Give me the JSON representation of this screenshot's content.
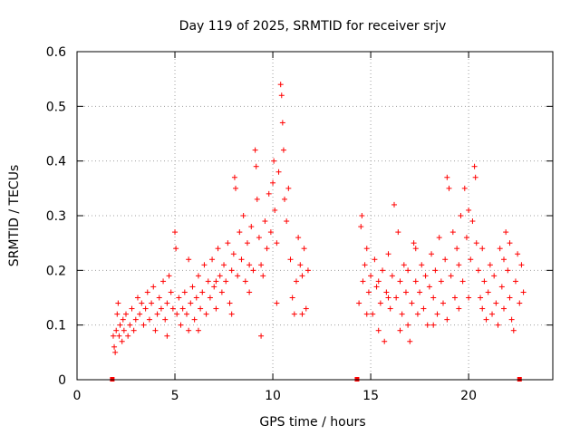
{
  "chart_data": {
    "type": "scatter",
    "title": "Day 119 of 2025, SRMTID for receiver srjv",
    "xlabel": "GPS time / hours",
    "ylabel": "SRMTID / TECUs",
    "xlim": [
      0,
      24.3
    ],
    "ylim": [
      0,
      0.6
    ],
    "xticks": [
      0,
      5,
      10,
      15,
      20
    ],
    "xtick_labels": [
      "0",
      "5",
      "10",
      "15",
      "20"
    ],
    "yticks": [
      0,
      0.1,
      0.2,
      0.3,
      0.4,
      0.5,
      0.6
    ],
    "ytick_labels": [
      "0",
      "0.1",
      "0.2",
      "0.3",
      "0.4",
      "0.5",
      "0.6"
    ],
    "grid": true,
    "marker": "plus",
    "color": "#ff0000",
    "gap_markers_x": [
      1.8,
      14.3,
      22.6
    ],
    "series": [
      {
        "name": "SRMTID",
        "points": [
          [
            1.85,
            0.08
          ],
          [
            1.9,
            0.06
          ],
          [
            1.95,
            0.05
          ],
          [
            2.0,
            0.09
          ],
          [
            2.05,
            0.12
          ],
          [
            2.1,
            0.14
          ],
          [
            2.15,
            0.08
          ],
          [
            2.2,
            0.1
          ],
          [
            2.3,
            0.07
          ],
          [
            2.35,
            0.11
          ],
          [
            2.4,
            0.09
          ],
          [
            2.5,
            0.12
          ],
          [
            2.6,
            0.08
          ],
          [
            2.7,
            0.1
          ],
          [
            2.8,
            0.13
          ],
          [
            2.9,
            0.09
          ],
          [
            3.0,
            0.11
          ],
          [
            3.1,
            0.15
          ],
          [
            3.2,
            0.12
          ],
          [
            3.3,
            0.14
          ],
          [
            3.4,
            0.1
          ],
          [
            3.5,
            0.13
          ],
          [
            3.6,
            0.16
          ],
          [
            3.7,
            0.11
          ],
          [
            3.8,
            0.14
          ],
          [
            3.9,
            0.17
          ],
          [
            4.0,
            0.09
          ],
          [
            4.1,
            0.12
          ],
          [
            4.2,
            0.15
          ],
          [
            4.3,
            0.13
          ],
          [
            4.4,
            0.18
          ],
          [
            4.5,
            0.11
          ],
          [
            4.6,
            0.14
          ],
          [
            4.7,
            0.19
          ],
          [
            4.8,
            0.16
          ],
          [
            4.9,
            0.13
          ],
          [
            5.0,
            0.27
          ],
          [
            5.05,
            0.24
          ],
          [
            5.1,
            0.12
          ],
          [
            5.2,
            0.15
          ],
          [
            5.3,
            0.1
          ],
          [
            5.4,
            0.13
          ],
          [
            5.5,
            0.16
          ],
          [
            5.6,
            0.12
          ],
          [
            5.7,
            0.09
          ],
          [
            5.8,
            0.14
          ],
          [
            5.9,
            0.17
          ],
          [
            6.0,
            0.11
          ],
          [
            6.1,
            0.15
          ],
          [
            6.2,
            0.19
          ],
          [
            6.3,
            0.13
          ],
          [
            6.4,
            0.16
          ],
          [
            6.5,
            0.21
          ],
          [
            6.6,
            0.12
          ],
          [
            6.7,
            0.18
          ],
          [
            6.8,
            0.15
          ],
          [
            6.9,
            0.22
          ],
          [
            7.0,
            0.17
          ],
          [
            7.1,
            0.13
          ],
          [
            7.2,
            0.24
          ],
          [
            7.3,
            0.19
          ],
          [
            7.4,
            0.16
          ],
          [
            7.5,
            0.21
          ],
          [
            7.6,
            0.18
          ],
          [
            7.7,
            0.25
          ],
          [
            7.8,
            0.14
          ],
          [
            7.9,
            0.2
          ],
          [
            8.0,
            0.23
          ],
          [
            8.05,
            0.37
          ],
          [
            8.1,
            0.35
          ],
          [
            8.2,
            0.19
          ],
          [
            8.3,
            0.27
          ],
          [
            8.4,
            0.22
          ],
          [
            8.5,
            0.3
          ],
          [
            8.6,
            0.18
          ],
          [
            8.7,
            0.25
          ],
          [
            8.8,
            0.21
          ],
          [
            8.9,
            0.28
          ],
          [
            9.0,
            0.2
          ],
          [
            9.1,
            0.42
          ],
          [
            9.15,
            0.39
          ],
          [
            9.2,
            0.33
          ],
          [
            9.3,
            0.26
          ],
          [
            9.4,
            0.21
          ],
          [
            9.5,
            0.19
          ],
          [
            9.6,
            0.29
          ],
          [
            9.7,
            0.24
          ],
          [
            9.8,
            0.34
          ],
          [
            9.9,
            0.27
          ],
          [
            10.0,
            0.36
          ],
          [
            10.05,
            0.4
          ],
          [
            10.1,
            0.31
          ],
          [
            10.2,
            0.25
          ],
          [
            10.3,
            0.38
          ],
          [
            10.4,
            0.54
          ],
          [
            10.45,
            0.52
          ],
          [
            10.5,
            0.47
          ],
          [
            10.55,
            0.42
          ],
          [
            10.6,
            0.33
          ],
          [
            10.7,
            0.29
          ],
          [
            10.8,
            0.35
          ],
          [
            10.9,
            0.22
          ],
          [
            11.0,
            0.15
          ],
          [
            11.1,
            0.12
          ],
          [
            11.2,
            0.18
          ],
          [
            11.3,
            0.26
          ],
          [
            11.4,
            0.21
          ],
          [
            11.5,
            0.19
          ],
          [
            11.6,
            0.24
          ],
          [
            11.7,
            0.13
          ],
          [
            11.8,
            0.2
          ],
          [
            9.4,
            0.08
          ],
          [
            7.9,
            0.12
          ],
          [
            6.2,
            0.09
          ],
          [
            4.6,
            0.08
          ],
          [
            10.2,
            0.14
          ],
          [
            11.5,
            0.12
          ],
          [
            8.8,
            0.16
          ],
          [
            7.1,
            0.18
          ],
          [
            5.7,
            0.22
          ],
          [
            14.4,
            0.14
          ],
          [
            14.5,
            0.28
          ],
          [
            14.55,
            0.3
          ],
          [
            14.6,
            0.18
          ],
          [
            14.7,
            0.21
          ],
          [
            14.8,
            0.24
          ],
          [
            14.9,
            0.16
          ],
          [
            15.0,
            0.19
          ],
          [
            15.1,
            0.12
          ],
          [
            15.2,
            0.22
          ],
          [
            15.3,
            0.17
          ],
          [
            15.4,
            0.09
          ],
          [
            15.5,
            0.14
          ],
          [
            15.6,
            0.2
          ],
          [
            15.7,
            0.07
          ],
          [
            15.8,
            0.16
          ],
          [
            15.9,
            0.23
          ],
          [
            16.0,
            0.13
          ],
          [
            16.1,
            0.19
          ],
          [
            16.2,
            0.32
          ],
          [
            16.3,
            0.15
          ],
          [
            16.4,
            0.27
          ],
          [
            16.5,
            0.18
          ],
          [
            16.6,
            0.12
          ],
          [
            16.7,
            0.21
          ],
          [
            16.8,
            0.16
          ],
          [
            16.9,
            0.1
          ],
          [
            17.0,
            0.07
          ],
          [
            17.1,
            0.14
          ],
          [
            17.2,
            0.25
          ],
          [
            17.3,
            0.18
          ],
          [
            17.4,
            0.12
          ],
          [
            17.5,
            0.16
          ],
          [
            17.6,
            0.21
          ],
          [
            17.7,
            0.13
          ],
          [
            17.8,
            0.19
          ],
          [
            17.9,
            0.1
          ],
          [
            18.0,
            0.17
          ],
          [
            18.1,
            0.23
          ],
          [
            18.2,
            0.15
          ],
          [
            18.3,
            0.2
          ],
          [
            18.4,
            0.12
          ],
          [
            18.5,
            0.26
          ],
          [
            18.6,
            0.18
          ],
          [
            18.7,
            0.14
          ],
          [
            18.8,
            0.22
          ],
          [
            18.9,
            0.37
          ],
          [
            19.0,
            0.35
          ],
          [
            19.1,
            0.19
          ],
          [
            19.2,
            0.27
          ],
          [
            19.3,
            0.15
          ],
          [
            19.4,
            0.24
          ],
          [
            19.5,
            0.21
          ],
          [
            19.6,
            0.3
          ],
          [
            19.7,
            0.18
          ],
          [
            19.8,
            0.35
          ],
          [
            19.9,
            0.26
          ],
          [
            20.0,
            0.31
          ],
          [
            20.1,
            0.22
          ],
          [
            20.2,
            0.29
          ],
          [
            20.3,
            0.39
          ],
          [
            20.35,
            0.37
          ],
          [
            20.4,
            0.25
          ],
          [
            20.5,
            0.2
          ],
          [
            20.6,
            0.15
          ],
          [
            20.7,
            0.13
          ],
          [
            20.8,
            0.18
          ],
          [
            20.9,
            0.11
          ],
          [
            21.0,
            0.16
          ],
          [
            21.1,
            0.21
          ],
          [
            21.2,
            0.12
          ],
          [
            21.3,
            0.19
          ],
          [
            21.4,
            0.14
          ],
          [
            21.5,
            0.1
          ],
          [
            21.6,
            0.24
          ],
          [
            21.7,
            0.17
          ],
          [
            21.8,
            0.13
          ],
          [
            21.9,
            0.27
          ],
          [
            22.0,
            0.2
          ],
          [
            22.1,
            0.15
          ],
          [
            22.2,
            0.11
          ],
          [
            22.3,
            0.09
          ],
          [
            22.4,
            0.18
          ],
          [
            22.5,
            0.23
          ],
          [
            22.6,
            0.14
          ],
          [
            22.7,
            0.21
          ],
          [
            22.8,
            0.16
          ],
          [
            16.5,
            0.09
          ],
          [
            18.9,
            0.11
          ],
          [
            20.7,
            0.24
          ],
          [
            17.3,
            0.24
          ],
          [
            19.5,
            0.13
          ],
          [
            15.9,
            0.15
          ],
          [
            21.8,
            0.22
          ],
          [
            14.8,
            0.12
          ],
          [
            16.9,
            0.2
          ],
          [
            20.0,
            0.15
          ],
          [
            18.2,
            0.1
          ],
          [
            22.1,
            0.25
          ],
          [
            15.4,
            0.18
          ]
        ]
      }
    ]
  }
}
